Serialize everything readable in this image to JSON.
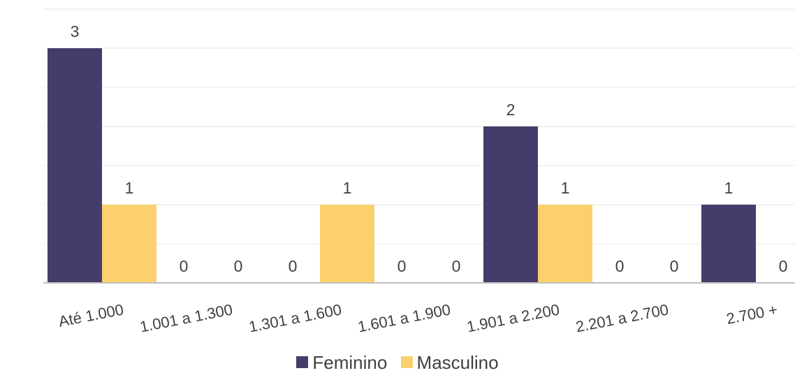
{
  "chart_data": {
    "type": "bar",
    "categories": [
      "Até 1.000",
      "1.001 a 1.300",
      "1.301 a 1.600",
      "1.601 a 1.900",
      "1.901 a 2.200",
      "2.201 a 2.700",
      "2.700 +"
    ],
    "series": [
      {
        "name": "Feminino",
        "color": "#453c6b",
        "values": [
          3,
          0,
          0,
          0,
          2,
          0,
          1
        ]
      },
      {
        "name": "Masculino",
        "color": "#fcd06e",
        "values": [
          1,
          0,
          1,
          0,
          1,
          0,
          0
        ]
      }
    ],
    "ylim": [
      0,
      3.5
    ],
    "grid": true,
    "legend_position": "bottom",
    "data_labels": true
  }
}
